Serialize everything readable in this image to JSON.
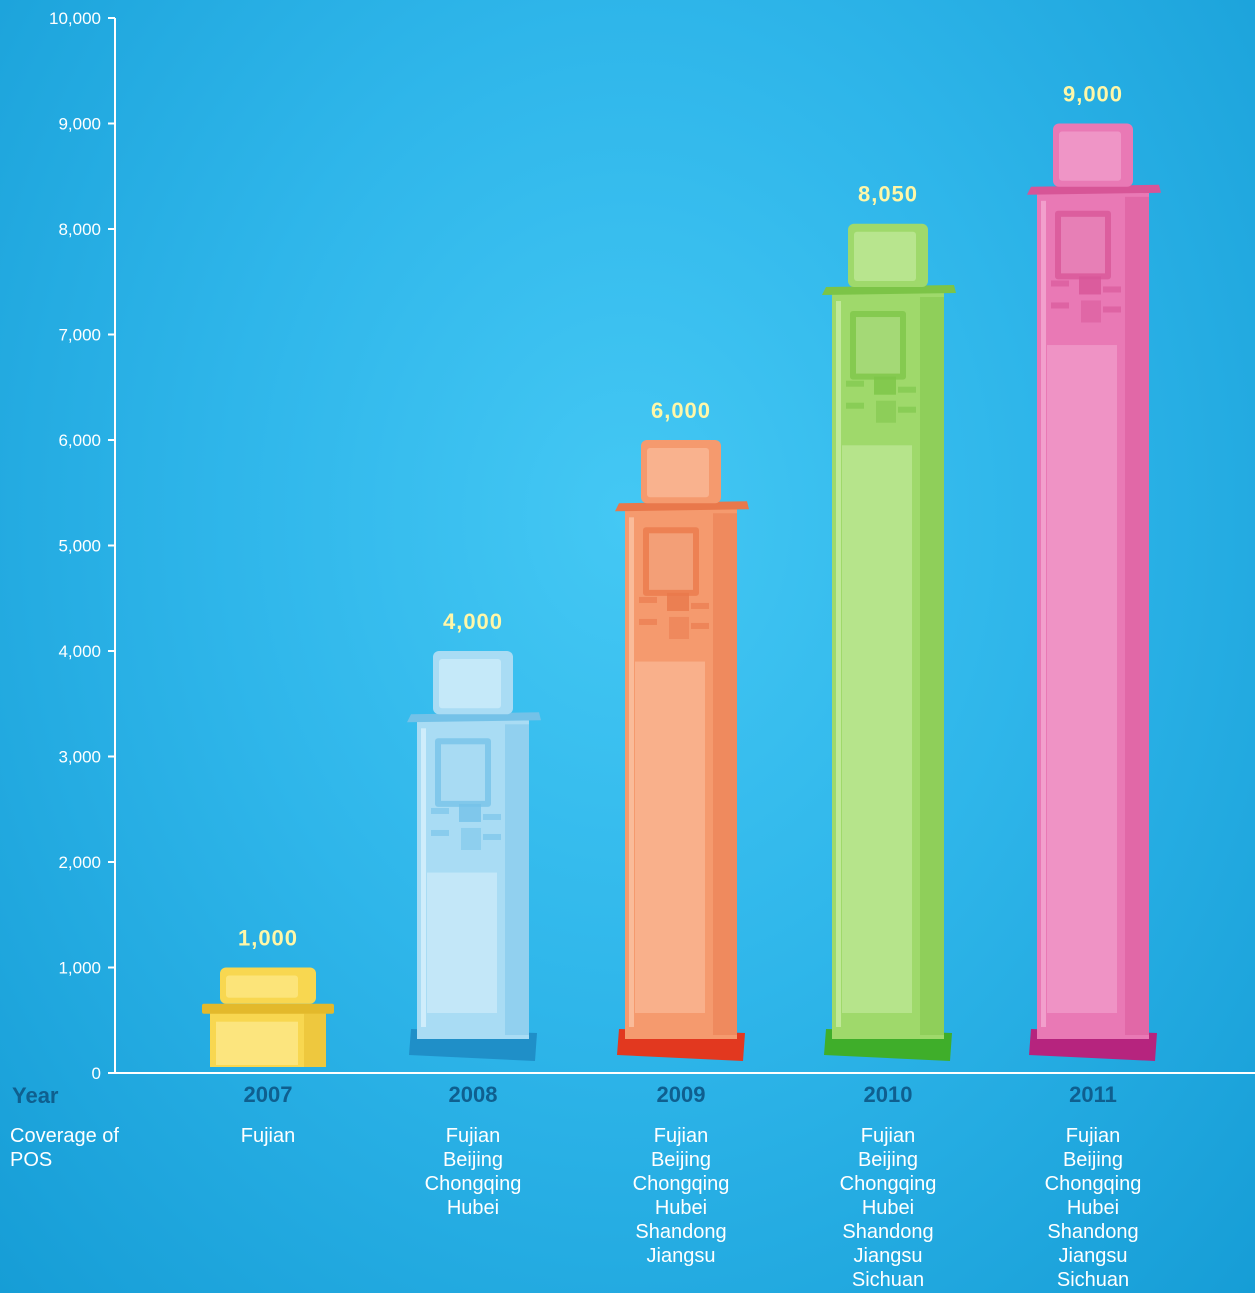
{
  "chart_data": {
    "type": "bar",
    "categories": [
      "2007",
      "2008",
      "2009",
      "2010",
      "2011"
    ],
    "values": [
      1000,
      4000,
      6000,
      8050,
      9000
    ],
    "value_labels": [
      "1,000",
      "4,000",
      "6,000",
      "8,050",
      "9,000"
    ],
    "ylim": [
      0,
      10000
    ],
    "yticks": [
      0,
      1000,
      2000,
      3000,
      4000,
      5000,
      6000,
      7000,
      8000,
      9000,
      10000
    ],
    "ytick_labels": [
      "0",
      "1,000",
      "2,000",
      "3,000",
      "4,000",
      "5,000",
      "6,000",
      "7,000",
      "8,000",
      "9,000",
      "10,000"
    ],
    "xlabel": "Year",
    "row_label": "Coverage of POS",
    "grid": false,
    "coverage": [
      [
        "Fujian"
      ],
      [
        "Fujian",
        "Beijing",
        "Chongqing",
        "Hubei"
      ],
      [
        "Fujian",
        "Beijing",
        "Chongqing",
        "Hubei",
        "Shandong",
        "Jiangsu"
      ],
      [
        "Fujian",
        "Beijing",
        "Chongqing",
        "Hubei",
        "Shandong",
        "Jiangsu",
        "Sichuan"
      ],
      [
        "Fujian",
        "Beijing",
        "Chongqing",
        "Hubei",
        "Shandong",
        "Jiangsu",
        "Sichuan"
      ]
    ],
    "colors": [
      {
        "main": "#f8d750",
        "light": "#fde98a",
        "dark": "#e3b92b",
        "base": "#d9ad2a"
      },
      {
        "main": "#a9dcf4",
        "light": "#d8f1fc",
        "dark": "#74c2e8",
        "base": "#1f8fc8"
      },
      {
        "main": "#f59a6e",
        "light": "#fbc3a4",
        "dark": "#e9784b",
        "base": "#e2381f"
      },
      {
        "main": "#9fd96b",
        "light": "#c9eca5",
        "dark": "#7cc447",
        "base": "#3fae2a"
      },
      {
        "main": "#e979b5",
        "light": "#f4a9d2",
        "dark": "#d75597",
        "base": "#b6247e"
      }
    ]
  }
}
